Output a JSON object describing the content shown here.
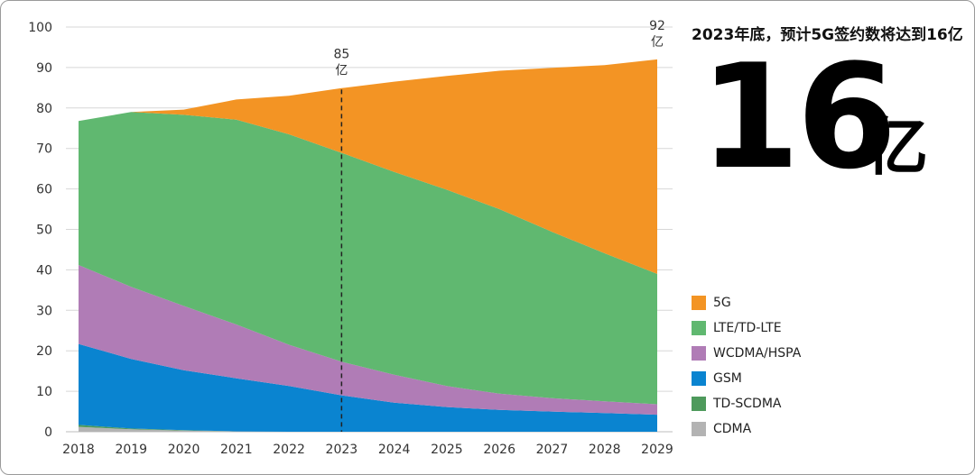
{
  "chart_data": {
    "type": "area",
    "stacked": true,
    "x": [
      2018,
      2019,
      2020,
      2021,
      2022,
      2023,
      2024,
      2025,
      2026,
      2027,
      2028,
      2029
    ],
    "series": [
      {
        "name": "CDMA",
        "color": "#b3b3b3",
        "values": [
          1.2,
          0.6,
          0.3,
          0.1,
          0.0,
          0.0,
          0.0,
          0.0,
          0.0,
          0.0,
          0.0,
          0.0
        ]
      },
      {
        "name": "TD-SCDMA",
        "color": "#4e9a5c",
        "values": [
          0.5,
          0.2,
          0.1,
          0.0,
          0.0,
          0.0,
          0.0,
          0.0,
          0.0,
          0.0,
          0.0,
          0.0
        ]
      },
      {
        "name": "GSM",
        "color": "#0a84d0",
        "values": [
          20.0,
          17.2,
          14.8,
          13.1,
          11.3,
          9.0,
          7.2,
          6.1,
          5.4,
          5.0,
          4.6,
          4.2
        ]
      },
      {
        "name": "WCDMA/HSPA",
        "color": "#b07cb6",
        "values": [
          19.5,
          17.8,
          15.9,
          13.3,
          10.2,
          8.3,
          6.9,
          5.2,
          4.0,
          3.3,
          2.9,
          2.6
        ]
      },
      {
        "name": "LTE/TD-LTE",
        "color": "#60b870",
        "values": [
          35.6,
          43.2,
          47.2,
          50.6,
          52.0,
          51.6,
          50.1,
          48.5,
          45.6,
          41.1,
          36.6,
          32.2
        ]
      },
      {
        "name": "5G",
        "color": "#f39424",
        "values": [
          0.0,
          0.0,
          1.3,
          5.0,
          9.5,
          16.0,
          22.3,
          28.1,
          34.2,
          40.5,
          46.5,
          53.0
        ]
      }
    ],
    "ylim": [
      0,
      100
    ],
    "yticks": [
      "0",
      "10",
      "20",
      "30",
      "40",
      "50",
      "60",
      "70",
      "80",
      "90",
      "100"
    ],
    "xticks": [
      "2018",
      "2019",
      "2020",
      "2021",
      "2022",
      "2023",
      "2024",
      "2025",
      "2026",
      "2027",
      "2028",
      "2029"
    ],
    "grid": true,
    "legend_position": "right",
    "annotations": [
      {
        "x": 2023,
        "y": 85,
        "value": "85",
        "unit": "亿",
        "dashed_line": true
      },
      {
        "x": 2029,
        "y": 92,
        "value": "92",
        "unit": "亿",
        "dashed_line": false
      }
    ]
  },
  "side_panel": {
    "title": "2023年底，预计5G签约数将达到16亿",
    "big_number": "16",
    "big_unit": "亿"
  },
  "legend": [
    {
      "label": "5G",
      "color": "#f39424"
    },
    {
      "label": "LTE/TD-LTE",
      "color": "#60b870"
    },
    {
      "label": "WCDMA/HSPA",
      "color": "#b07cb6"
    },
    {
      "label": "GSM",
      "color": "#0a84d0"
    },
    {
      "label": "TD-SCDMA",
      "color": "#4e9a5c"
    },
    {
      "label": "CDMA",
      "color": "#b3b3b3"
    }
  ]
}
